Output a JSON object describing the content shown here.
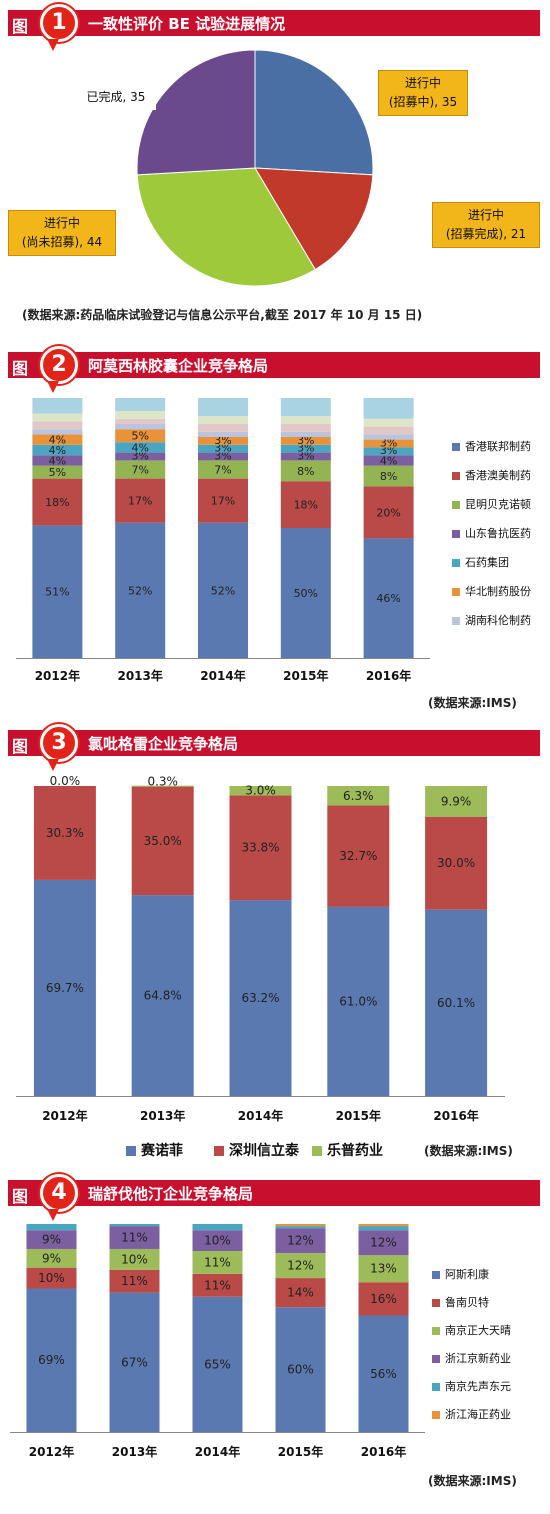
{
  "panel1": {
    "fig": "图",
    "num": "1",
    "title": "一致性评价 BE 试验进展情况",
    "source": "(数据来源:药品临床试验登记与信息公示平台,截至 2017 年 10 月 15 日)",
    "callouts": {
      "done": "已完成, 35",
      "recruiting_l1": "进行中",
      "recruiting_l2": "(招募中), 35",
      "recruit_done_l1": "进行中",
      "recruit_done_l2": "(招募完成), 21",
      "not_yet_l1": "进行中",
      "not_yet_l2": "(尚未招募), 44"
    }
  },
  "panel2": {
    "fig": "图",
    "num": "2",
    "title": "阿莫西林胶囊企业竞争格局",
    "source": "(数据来源:IMS)",
    "legend": [
      "香港联邦制药",
      "香港澳美制药",
      "昆明贝克诺顿",
      "山东鲁抗医药",
      "石药集团",
      "华北制药股份",
      "湖南科伦制药"
    ]
  },
  "panel3": {
    "fig": "图",
    "num": "3",
    "title": "氯吡格雷企业竞争格局",
    "source": "(数据来源:IMS)",
    "legend": [
      "赛诺菲",
      "深圳信立泰",
      "乐普药业"
    ]
  },
  "panel4": {
    "fig": "图",
    "num": "4",
    "title": "瑞舒伐他汀企业竞争格局",
    "source": "(数据来源:IMS)",
    "legend": [
      "阿斯利康",
      "鲁南贝特",
      "南京正大天晴",
      "浙江京新药业",
      "南京先声东元",
      "浙江海正药业"
    ]
  },
  "chart_data": [
    {
      "type": "pie",
      "categories": [
        "进行中(招募中)",
        "进行中(招募完成)",
        "进行中(尚未招募)",
        "已完成"
      ],
      "values": [
        35,
        21,
        44,
        35
      ],
      "colors": [
        "#4a6fa5",
        "#c0392b",
        "#9dc93b",
        "#6a4a8c"
      ]
    },
    {
      "type": "bar",
      "stacked": true,
      "categories": [
        "2012年",
        "2013年",
        "2014年",
        "2015年",
        "2016年"
      ],
      "series": [
        {
          "name": "香港联邦制药",
          "values": [
            51,
            52,
            52,
            50,
            46
          ],
          "labels": [
            "51%",
            "52%",
            "52%",
            "50%",
            "46%"
          ],
          "color": "#5a79b0"
        },
        {
          "name": "香港澳美制药",
          "values": [
            18,
            17,
            17,
            18,
            20
          ],
          "labels": [
            "18%",
            "17%",
            "17%",
            "18%",
            "20%"
          ],
          "color": "#b94a48"
        },
        {
          "name": "昆明贝克诺顿",
          "values": [
            5,
            7,
            7,
            8,
            8
          ],
          "labels": [
            "5%",
            "7%",
            "7%",
            "8%",
            "8%"
          ],
          "color": "#94b454"
        },
        {
          "name": "山东鲁抗医药",
          "values": [
            4,
            3,
            3,
            3,
            4
          ],
          "labels": [
            "4%",
            "3%",
            "3%",
            "3%",
            "4%"
          ],
          "color": "#7b5fa0"
        },
        {
          "name": "石药集团",
          "values": [
            4,
            4,
            3,
            3,
            3
          ],
          "labels": [
            "4%",
            "4%",
            "3%",
            "3%",
            "3%"
          ],
          "color": "#4aa5c0"
        },
        {
          "name": "华北制药股份",
          "values": [
            4,
            5,
            3,
            3,
            3
          ],
          "labels": [
            "4%",
            "5%",
            "3%",
            "3%",
            "3%"
          ],
          "color": "#e8933a"
        },
        {
          "name": "湖南科伦制药",
          "values": [
            2,
            2,
            2,
            2,
            2
          ],
          "labels": [
            "",
            "",
            "",
            "",
            ""
          ],
          "color": "#b8c4e0"
        },
        {
          "name": "",
          "values": [
            3,
            2,
            3,
            3,
            3
          ],
          "labels": [
            "",
            "",
            "",
            "",
            ""
          ],
          "color": "#e3c7c7"
        },
        {
          "name": "",
          "values": [
            3,
            3,
            3,
            3,
            3
          ],
          "labels": [
            "",
            "",
            "",
            "",
            ""
          ],
          "color": "#dce6c7"
        },
        {
          "name": "",
          "values": [
            6,
            5,
            7,
            7,
            8
          ],
          "labels": [
            "",
            "",
            "",
            "",
            ""
          ],
          "color": "#a9d3e3"
        }
      ],
      "ylim": [
        0,
        100
      ]
    },
    {
      "type": "bar",
      "stacked": true,
      "categories": [
        "2012年",
        "2013年",
        "2014年",
        "2015年",
        "2016年"
      ],
      "series": [
        {
          "name": "赛诺菲",
          "values": [
            69.7,
            64.8,
            63.2,
            61.0,
            60.1
          ],
          "labels": [
            "69.7%",
            "64.8%",
            "63.2%",
            "61.0%",
            "60.1%"
          ],
          "color": "#5a79b0"
        },
        {
          "name": "深圳信立泰",
          "values": [
            30.3,
            35.0,
            33.8,
            32.7,
            30.0
          ],
          "labels": [
            "30.3%",
            "35.0%",
            "33.8%",
            "32.7%",
            "30.0%"
          ],
          "color": "#b94a48"
        },
        {
          "name": "乐普药业",
          "values": [
            0.0,
            0.3,
            3.0,
            6.3,
            9.9
          ],
          "labels": [
            "0.0%",
            "0.3%",
            "3.0%",
            "6.3%",
            "9.9%"
          ],
          "color": "#9dbb59"
        }
      ],
      "ylim": [
        0,
        100
      ]
    },
    {
      "type": "bar",
      "stacked": true,
      "categories": [
        "2012年",
        "2013年",
        "2014年",
        "2015年",
        "2016年"
      ],
      "series": [
        {
          "name": "阿斯利康",
          "values": [
            69,
            67,
            65,
            60,
            56
          ],
          "labels": [
            "69%",
            "67%",
            "65%",
            "60%",
            "56%"
          ],
          "color": "#5a79b0"
        },
        {
          "name": "鲁南贝特",
          "values": [
            10,
            11,
            11,
            14,
            16
          ],
          "labels": [
            "10%",
            "11%",
            "11%",
            "14%",
            "16%"
          ],
          "color": "#b94a48"
        },
        {
          "name": "南京正大天晴",
          "values": [
            9,
            10,
            11,
            12,
            13
          ],
          "labels": [
            "9%",
            "10%",
            "11%",
            "12%",
            "13%"
          ],
          "color": "#9dbb59"
        },
        {
          "name": "浙江京新药业",
          "values": [
            9,
            11,
            10,
            12,
            12
          ],
          "labels": [
            "9%",
            "11%",
            "10%",
            "12%",
            "12%"
          ],
          "color": "#7b5fa0"
        },
        {
          "name": "南京先声东元",
          "values": [
            3,
            1,
            3,
            1,
            2
          ],
          "labels": [
            "",
            "",
            "",
            "",
            ""
          ],
          "color": "#4aa5c0"
        },
        {
          "name": "浙江海正药业",
          "values": [
            0,
            0,
            0,
            1,
            1
          ],
          "labels": [
            "",
            "",
            "",
            "",
            ""
          ],
          "color": "#e8933a"
        }
      ],
      "ylim": [
        0,
        100
      ]
    }
  ]
}
